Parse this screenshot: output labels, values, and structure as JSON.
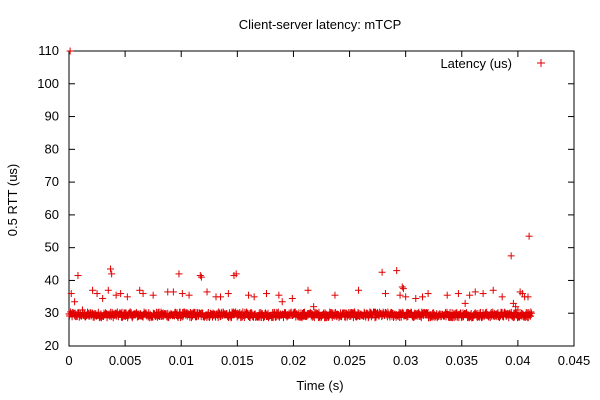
{
  "chart_data": {
    "type": "scatter",
    "title": "Client-server latency: mTCP",
    "xlabel": "Time (s)",
    "ylabel": "0.5 RTT (us)",
    "xlim": [
      0,
      0.045
    ],
    "ylim": [
      20,
      110
    ],
    "xticks": [
      0,
      0.005,
      0.01,
      0.015,
      0.02,
      0.025,
      0.03,
      0.035,
      0.04,
      0.045
    ],
    "yticks": [
      20,
      30,
      40,
      50,
      60,
      70,
      80,
      90,
      100,
      110
    ],
    "xtick_labels": [
      "0",
      "0.005",
      "0.01",
      "0.015",
      "0.02",
      "0.025",
      "0.03",
      "0.035",
      "0.04",
      "0.045"
    ],
    "ytick_labels": [
      "20",
      "30",
      "40",
      "50",
      "60",
      "70",
      "80",
      "90",
      "100",
      "110"
    ],
    "grid": false,
    "legend_position": "top-right",
    "marker_color": "#e00000",
    "marker": "plus",
    "series": [
      {
        "name": "Latency (us)",
        "points": [
          [
            0.0001,
            110.0
          ],
          [
            0.0002,
            36.0
          ],
          [
            0.0005,
            33.5
          ],
          [
            0.0008,
            41.5
          ],
          [
            0.0012,
            31.0
          ],
          [
            0.0021,
            37.0
          ],
          [
            0.0025,
            36.0
          ],
          [
            0.003,
            34.5
          ],
          [
            0.0035,
            37.0
          ],
          [
            0.0037,
            43.5
          ],
          [
            0.0038,
            42.0
          ],
          [
            0.0042,
            35.5
          ],
          [
            0.0046,
            36.0
          ],
          [
            0.0052,
            35.0
          ],
          [
            0.0063,
            37.0
          ],
          [
            0.0066,
            36.0
          ],
          [
            0.0075,
            35.5
          ],
          [
            0.0088,
            36.5
          ],
          [
            0.0093,
            36.5
          ],
          [
            0.0098,
            42.0
          ],
          [
            0.0101,
            36.0
          ],
          [
            0.0107,
            35.5
          ],
          [
            0.0117,
            41.5
          ],
          [
            0.0118,
            41.0
          ],
          [
            0.0123,
            36.5
          ],
          [
            0.0131,
            35.0
          ],
          [
            0.0135,
            35.0
          ],
          [
            0.0142,
            36.0
          ],
          [
            0.0147,
            41.5
          ],
          [
            0.0149,
            42.0
          ],
          [
            0.016,
            35.5
          ],
          [
            0.0165,
            35.0
          ],
          [
            0.0176,
            36.0
          ],
          [
            0.0187,
            35.5
          ],
          [
            0.019,
            33.5
          ],
          [
            0.0199,
            34.5
          ],
          [
            0.0213,
            37.0
          ],
          [
            0.0218,
            32.0
          ],
          [
            0.0237,
            35.5
          ],
          [
            0.0258,
            37.0
          ],
          [
            0.0279,
            42.5
          ],
          [
            0.0282,
            36.0
          ],
          [
            0.0292,
            43.0
          ],
          [
            0.0297,
            38.0
          ],
          [
            0.0298,
            37.5
          ],
          [
            0.0295,
            35.5
          ],
          [
            0.03,
            35.0
          ],
          [
            0.0309,
            34.5
          ],
          [
            0.0315,
            35.0
          ],
          [
            0.032,
            36.0
          ],
          [
            0.0337,
            35.5
          ],
          [
            0.0347,
            36.0
          ],
          [
            0.0353,
            33.0
          ],
          [
            0.0357,
            35.5
          ],
          [
            0.0362,
            36.5
          ],
          [
            0.0369,
            36.0
          ],
          [
            0.0378,
            37.0
          ],
          [
            0.0386,
            35.0
          ],
          [
            0.0394,
            47.5
          ],
          [
            0.04,
            31.0
          ],
          [
            0.0402,
            36.5
          ],
          [
            0.0404,
            36.0
          ],
          [
            0.0406,
            35.0
          ],
          [
            0.041,
            53.5
          ],
          [
            0.0409,
            35.0
          ],
          [
            0.0398,
            32.0
          ],
          [
            0.0396,
            33.0
          ]
        ]
      }
    ],
    "baseline_band": {
      "x_range": [
        0.0,
        0.0412
      ],
      "y_mean": 29.5,
      "y_spread": 0.9,
      "y_low_outlier_range": [
        29.0,
        30.5
      ]
    }
  }
}
